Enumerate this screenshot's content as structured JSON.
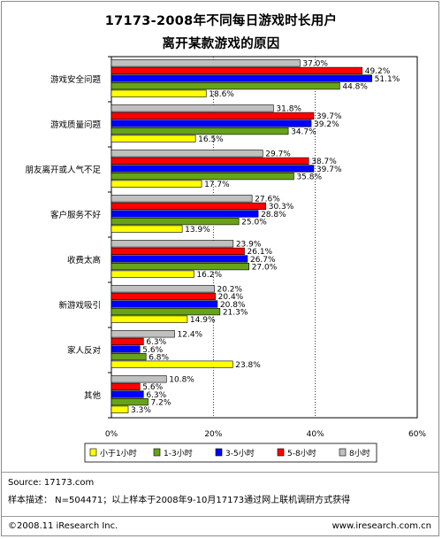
{
  "header": {
    "title_line1": "17173-2008年不同每日游戏时长用户",
    "title_line2": "离开某款游戏的原因"
  },
  "footer": {
    "source": "Source:  17173.com",
    "sample": "样本描述：  N=504471；以上样本于2008年9-10月17173通过网上联机调研方式获得",
    "copyright": "©2008.11  iResearch Inc.",
    "website": "www.iresearch.com.cn"
  },
  "chart_data": {
    "type": "bar",
    "orientation": "horizontal",
    "categories": [
      "游戏安全问题",
      "游戏质量问题",
      "朋友离开或人气不足",
      "客户服务不好",
      "收费太高",
      "新游戏吸引",
      "家人反对",
      "其他"
    ],
    "series": [
      {
        "name": "8小时",
        "color": "#c0c0c0",
        "values": [
          37.0,
          31.8,
          29.7,
          27.6,
          23.9,
          20.2,
          12.4,
          10.8
        ]
      },
      {
        "name": "5-8小时",
        "color": "#ff0000",
        "values": [
          49.2,
          39.7,
          38.7,
          30.3,
          26.1,
          20.4,
          6.3,
          5.6
        ]
      },
      {
        "name": "3-5小时",
        "color": "#0000ff",
        "values": [
          51.1,
          39.2,
          39.7,
          28.8,
          26.7,
          20.8,
          5.6,
          6.3
        ]
      },
      {
        "name": "1-3小时",
        "color": "#66a319",
        "values": [
          44.8,
          34.7,
          35.8,
          25.0,
          27.0,
          21.3,
          6.8,
          7.2
        ]
      },
      {
        "name": "小于1小时",
        "color": "#ffff00",
        "values": [
          18.6,
          16.5,
          17.7,
          13.9,
          16.2,
          14.9,
          23.8,
          3.3
        ]
      }
    ],
    "legend_order": [
      "小于1小时",
      "1-3小时",
      "3-5小时",
      "5-8小时",
      "8小时"
    ],
    "xlim": [
      0,
      60
    ],
    "ticks": [
      "0%",
      "20%",
      "40%",
      "60%"
    ],
    "value_suffix": "%",
    "legend_position": "bottom",
    "grid": "vertical"
  }
}
